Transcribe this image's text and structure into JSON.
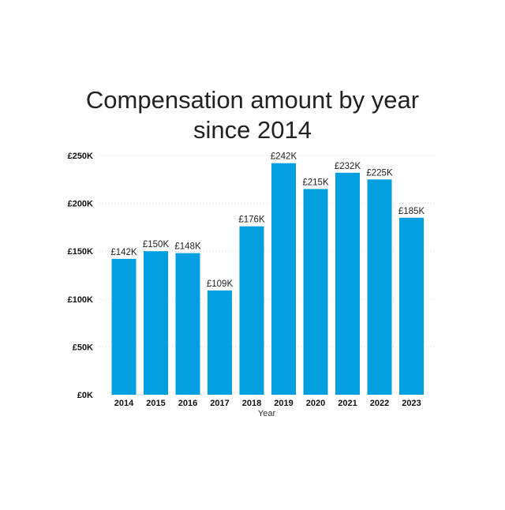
{
  "chart_data": {
    "type": "bar",
    "title_line1": "Compensation amount by year",
    "title_line2": "since 2014",
    "xlabel": "Year",
    "ylabel": "",
    "categories": [
      "2014",
      "2015",
      "2016",
      "2017",
      "2018",
      "2019",
      "2020",
      "2021",
      "2022",
      "2023"
    ],
    "values": [
      142,
      150,
      148,
      109,
      176,
      242,
      215,
      232,
      225,
      185
    ],
    "data_labels": [
      "£142K",
      "£150K",
      "£148K",
      "£109K",
      "£176K",
      "£242K",
      "£215K",
      "£232K",
      "£225K",
      "£185K"
    ],
    "yticks": [
      0,
      50,
      100,
      150,
      200,
      250
    ],
    "ytick_labels": [
      "£0K",
      "£50K",
      "£100K",
      "£150K",
      "£200K",
      "£250K"
    ],
    "ylim": [
      0,
      250
    ],
    "unit": "£K",
    "grid": true,
    "legend": "none",
    "bar_color": "#039FE1"
  }
}
